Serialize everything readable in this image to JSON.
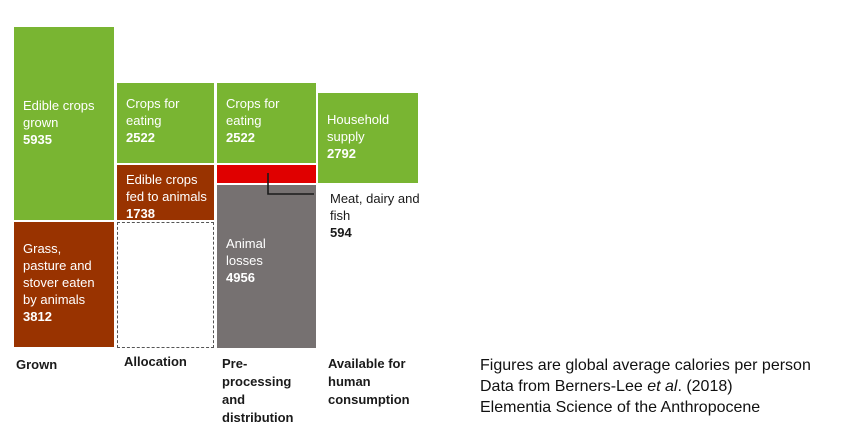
{
  "chart_data": {
    "type": "bar",
    "categories": [
      "Grown",
      "Allocation",
      "Pre-processing and distribution",
      "Available for human consumption"
    ],
    "series": [
      {
        "name": "Edible crops grown",
        "category": "Grown",
        "value": 5935
      },
      {
        "name": "Grass, pasture and stover eaten by animals",
        "category": "Grown",
        "value": 3812
      },
      {
        "name": "Crops for eating",
        "category": "Allocation",
        "value": 2522
      },
      {
        "name": "Edible crops fed to animals",
        "category": "Allocation",
        "value": 1738
      },
      {
        "name": "Crops for eating",
        "category": "Pre-processing and distribution",
        "value": 2522
      },
      {
        "name": "Meat, dairy and fish",
        "category": "Pre-processing and distribution",
        "value": 594
      },
      {
        "name": "Animal losses",
        "category": "Pre-processing and distribution",
        "value": 4956
      },
      {
        "name": "Household supply",
        "category": "Available for human consumption",
        "value": 2792
      }
    ]
  },
  "blocks": {
    "grown_edible": {
      "label": "Edible crops grown",
      "value": "5935"
    },
    "grown_grass": {
      "label": "Grass, pasture and stover eaten by animals",
      "value": "3812"
    },
    "alloc_crops": {
      "label": "Crops for eating",
      "value": "2522"
    },
    "alloc_fed": {
      "label": "Edible crops fed to animals",
      "value": "1738"
    },
    "pre_crops": {
      "label": "Crops for eating",
      "value": "2522"
    },
    "pre_losses": {
      "label": "Animal losses",
      "value": "4956"
    },
    "house": {
      "label": "Household supply",
      "value": "2792"
    }
  },
  "callout": {
    "label": "Meat, dairy and fish",
    "value": "594"
  },
  "stages": {
    "grown": "Grown",
    "allocation": "Allocation",
    "preprocessing": "Pre-processing and distribution",
    "available": "Available for human consumption"
  },
  "notes": {
    "line1": "Figures are global average calories per person",
    "line2_prefix": "Data from Berners-Lee ",
    "line2_italic": "et al",
    "line2_suffix": ". (2018)",
    "line3": "Elementia Science of the Anthropocene"
  },
  "colors": {
    "green": "#79b532",
    "brown": "#993300",
    "gray": "#767171",
    "red": "#e00000"
  }
}
